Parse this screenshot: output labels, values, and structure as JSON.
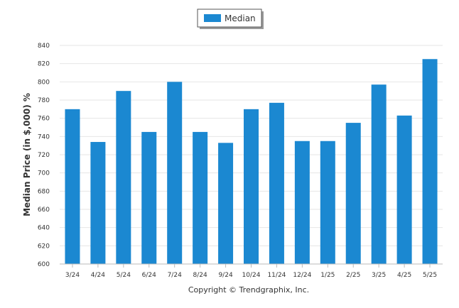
{
  "chart_data": {
    "type": "bar",
    "categories": [
      "3/24",
      "4/24",
      "5/24",
      "6/24",
      "7/24",
      "8/24",
      "9/24",
      "10/24",
      "11/24",
      "12/24",
      "1/25",
      "2/25",
      "3/25",
      "4/25",
      "5/25"
    ],
    "series": [
      {
        "name": "Median",
        "values": [
          770,
          734,
          790,
          745,
          800,
          745,
          733,
          770,
          777,
          735,
          735,
          755,
          797,
          763,
          825
        ]
      }
    ],
    "xlabel": "",
    "ylabel": "Median Price (in $,000) %",
    "ylim": [
      600,
      840
    ],
    "yticks": [
      600,
      620,
      640,
      660,
      680,
      700,
      720,
      740,
      760,
      780,
      800,
      820,
      840
    ],
    "grid": true,
    "legend_position": "top-center",
    "bar_color": "#1b88d1",
    "credit": "Copyright © Trendgraphix, Inc."
  }
}
